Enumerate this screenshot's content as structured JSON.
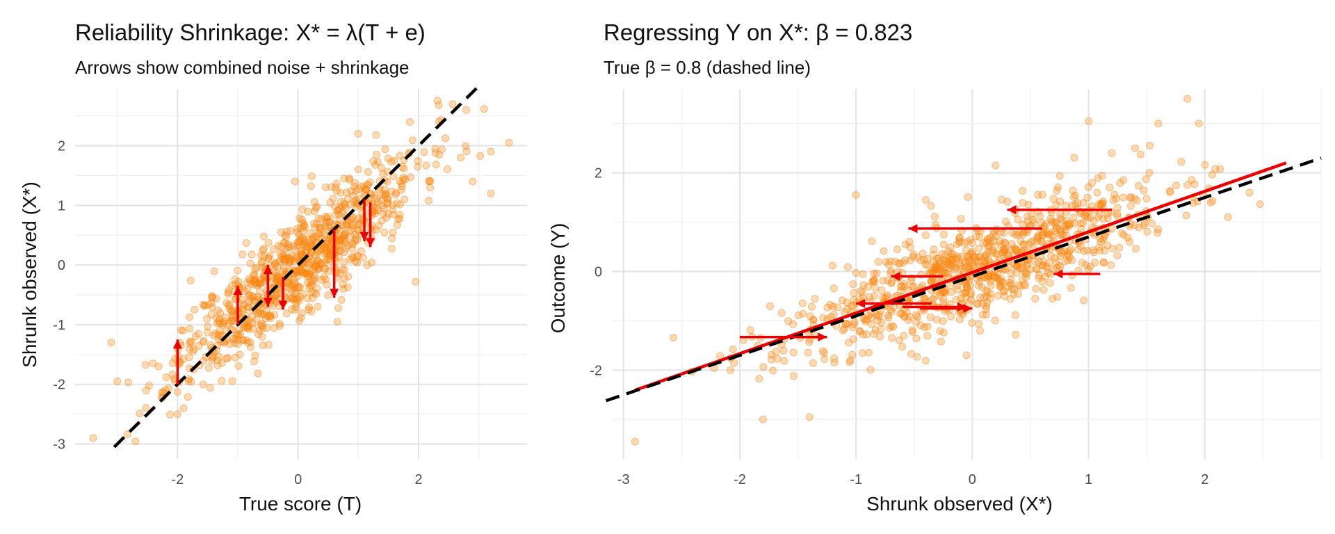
{
  "chart_data": [
    {
      "type": "scatter",
      "title": "Reliability Shrinkage: X* = λ(T + e)",
      "subtitle": "Arrows show combined noise + shrinkage",
      "xlabel": "True score (T)",
      "ylabel": "Shrunk observed (X*)",
      "xlim": [
        -3.7,
        3.8
      ],
      "ylim": [
        -3.25,
        2.95
      ],
      "xticks": [
        -2,
        0,
        2
      ],
      "yticks": [
        -3,
        -2,
        -1,
        0,
        1,
        2
      ],
      "grid": true,
      "n_points": 900,
      "point_color": "#ff8c1a",
      "model": {
        "slope": 0.83,
        "noise_sd": 0.42,
        "x_sd": 1.0,
        "seed": 11
      },
      "outliers": [
        [
          -3.4,
          -2.9
        ],
        [
          3.5,
          2.05
        ],
        [
          3.2,
          1.9
        ],
        [
          3.2,
          1.2
        ],
        [
          2.9,
          1.4
        ],
        [
          2.7,
          1.8
        ],
        [
          -2.0,
          -2.5
        ],
        [
          -1.9,
          -2.4
        ],
        [
          -3.0,
          -1.95
        ],
        [
          1.95,
          -0.28
        ],
        [
          -3.1,
          -1.3
        ],
        [
          0.65,
          -0.95
        ],
        [
          -0.05,
          1.4
        ],
        [
          1.0,
          2.2
        ]
      ],
      "reference_line": {
        "label": "identity",
        "slope": 1,
        "intercept": 0,
        "style": "dashed",
        "color": "#000000",
        "x_range": [
          -3.05,
          3.0
        ]
      },
      "arrows": [
        {
          "x": -2.0,
          "y_from": -2.0,
          "y_to": -1.25
        },
        {
          "x": -1.0,
          "y_from": -1.0,
          "y_to": -0.35
        },
        {
          "x": -0.5,
          "y_from": 0.0,
          "y_to": -0.7
        },
        {
          "x": -0.5,
          "y_from": -0.5,
          "y_to": 0.0
        },
        {
          "x": -0.25,
          "y_from": -0.2,
          "y_to": -0.75
        },
        {
          "x": 0.6,
          "y_from": 0.6,
          "y_to": -0.55
        },
        {
          "x": 1.1,
          "y_from": 1.1,
          "y_to": 0.4
        },
        {
          "x": 1.2,
          "y_from": 1.05,
          "y_to": 0.3
        }
      ],
      "arrow_color": "#ee0000"
    },
    {
      "type": "scatter",
      "title": "Regressing Y on X*: β = 0.823",
      "subtitle": "True β = 0.8 (dashed line)",
      "xlabel": "Shrunk observed (X*)",
      "ylabel": "Outcome (Y)",
      "xlim": [
        -3.1,
        3.0
      ],
      "ylim": [
        -3.8,
        3.7
      ],
      "xticks": [
        -3,
        -2,
        -1,
        0,
        1,
        2
      ],
      "yticks": [
        -2,
        0,
        2
      ],
      "grid": true,
      "n_points": 900,
      "point_color": "#ff8c1a",
      "model": {
        "slope": 0.823,
        "noise_sd": 0.5,
        "x_sd": 0.82,
        "seed": 23
      },
      "outliers": [
        [
          -2.9,
          -3.45
        ],
        [
          1.85,
          3.5
        ],
        [
          1.0,
          3.05
        ],
        [
          1.95,
          3.0
        ],
        [
          1.6,
          3.0
        ],
        [
          1.4,
          2.5
        ],
        [
          1.2,
          2.4
        ],
        [
          2.2,
          1.1
        ],
        [
          2.05,
          1.4
        ],
        [
          -1.8,
          -3.0
        ],
        [
          -1.4,
          -2.95
        ],
        [
          -0.4,
          1.45
        ],
        [
          -1.0,
          1.55
        ],
        [
          0.2,
          2.15
        ],
        [
          -2.05,
          -1.85
        ],
        [
          -0.05,
          -1.7
        ]
      ],
      "reference_line": {
        "label": "True β = 0.8",
        "slope": 0.8,
        "intercept": -0.1,
        "style": "dashed",
        "color": "#000000",
        "x_range": [
          -3.15,
          3.0
        ]
      },
      "fit_line": {
        "slope": 0.823,
        "intercept": -0.02,
        "color": "#ee0000",
        "x_range": [
          -2.9,
          2.7
        ]
      },
      "arrows": [
        {
          "y": 1.25,
          "x_from": 1.2,
          "x_to": 0.3
        },
        {
          "y": 0.87,
          "x_from": 0.6,
          "x_to": -0.55
        },
        {
          "y": -0.05,
          "x_from": 1.1,
          "x_to": 0.7
        },
        {
          "y": -0.1,
          "x_from": -0.25,
          "x_to": -0.7
        },
        {
          "y": -0.65,
          "x_from": -0.35,
          "x_to": -1.0
        },
        {
          "y": -0.72,
          "x_from": -0.6,
          "x_to": -0.05
        },
        {
          "y": -0.75,
          "x_from": -0.45,
          "x_to": 0.0
        },
        {
          "y": -1.33,
          "x_from": -2.0,
          "x_to": -1.25
        }
      ],
      "arrow_color": "#ee0000"
    }
  ]
}
